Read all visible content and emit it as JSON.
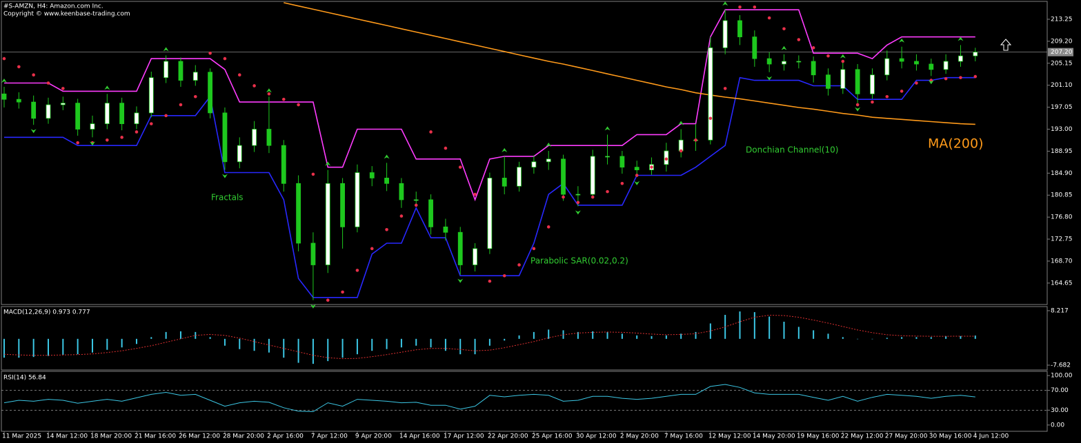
{
  "chart_data": [
    {
      "type": "candlestick",
      "title": "#S-AMZN, H4:  Amazon.com Inc.",
      "subtitle": "Copyright © www.keenbase-trading.com",
      "categories": [
        "11 Mar 2025",
        null,
        null,
        "14 Mar 12:00",
        null,
        null,
        "18 Mar 20:00",
        null,
        null,
        "21 Mar 16:00",
        null,
        null,
        "26 Mar 12:00",
        null,
        null,
        "28 Mar 20:00",
        null,
        null,
        "2 Apr 16:00",
        null,
        null,
        "7 Apr 12:00",
        null,
        null,
        "9 Apr 20:00",
        null,
        null,
        "14 Apr 16:00",
        null,
        null,
        "17 Apr 12:00",
        null,
        null,
        "22 Apr 20:00",
        null,
        null,
        "25 Apr 16:00",
        null,
        null,
        "30 Apr 12:00",
        null,
        null,
        "2 May 20:00",
        null,
        null,
        "7 May 16:00",
        null,
        null,
        "12 May 12:00",
        null,
        null,
        "14 May 20:00",
        null,
        null,
        "19 May 16:00",
        null,
        null,
        "22 May 12:00",
        null,
        null,
        "27 May 20:00",
        null,
        null,
        "30 May 16:00",
        null,
        null,
        "4 Jun 12:00"
      ],
      "open": [
        199.5,
        198.5,
        198,
        195,
        197.5,
        197.8,
        193,
        194,
        197.8,
        194,
        196,
        202.5,
        205.5,
        202,
        203.5,
        196,
        187,
        190,
        193,
        190,
        183,
        172,
        168,
        183,
        175,
        185,
        184,
        183,
        180,
        180,
        175,
        174,
        168,
        171,
        184,
        182.5,
        186,
        187,
        187.5,
        181,
        181,
        188,
        188,
        186,
        185.5,
        186.5,
        189,
        191,
        191,
        208,
        213,
        210,
        206,
        205,
        205.5,
        205.5,
        203,
        200.5,
        204,
        199.5,
        203,
        206,
        205.5,
        205,
        204,
        205.5,
        206.5
      ],
      "high": [
        200.8,
        199.8,
        199.2,
        198.8,
        199,
        198.6,
        195.5,
        199.5,
        198.8,
        197.2,
        203.6,
        206.6,
        206.2,
        204.8,
        204.2,
        197,
        191.5,
        194.5,
        199,
        191,
        184.5,
        174,
        185.5,
        184,
        186.5,
        186.2,
        186.8,
        184,
        181.5,
        181,
        176.5,
        175,
        172,
        185,
        188,
        187,
        188.2,
        189,
        188.3,
        182.5,
        189.2,
        192,
        189,
        187.2,
        187.8,
        190.5,
        193,
        194,
        210,
        215,
        214,
        211.2,
        207.2,
        206.8,
        206.6,
        206.4,
        204.2,
        205.3,
        205,
        204.2,
        207.5,
        208.2,
        206.8,
        206,
        206.8,
        208.5,
        208
      ],
      "low": [
        197,
        196.8,
        193.8,
        194,
        196.5,
        191.8,
        191.5,
        193,
        192.8,
        193,
        195.2,
        201.5,
        200.8,
        201,
        195,
        185.5,
        185.8,
        188.8,
        188.6,
        181.5,
        170.5,
        161.5,
        166.5,
        171,
        174,
        182.5,
        181.6,
        178.5,
        178.8,
        173.6,
        172.5,
        166.2,
        166.8,
        170,
        181,
        181.5,
        184.8,
        185.5,
        179.8,
        178.8,
        180.2,
        186.5,
        184.8,
        184.2,
        184.6,
        185.2,
        187.8,
        189,
        190.2,
        206.8,
        208.5,
        204.5,
        203.5,
        203.8,
        204.2,
        201.6,
        199.2,
        199.5,
        197.8,
        198.6,
        202,
        204.2,
        203.8,
        202.8,
        203.2,
        204.5,
        205.5
      ],
      "close": [
        198.5,
        198,
        195,
        197.5,
        197.8,
        193,
        194,
        197.8,
        194,
        196,
        202.5,
        205.5,
        202,
        203.5,
        196,
        187,
        190,
        193,
        190,
        183,
        172,
        168,
        183,
        175,
        185,
        184,
        183,
        180,
        180,
        175,
        174,
        168,
        171,
        184,
        182.5,
        186,
        187,
        187.5,
        181,
        181,
        188,
        188,
        186,
        185.5,
        186.5,
        189,
        191,
        191,
        208,
        213,
        210,
        206,
        205,
        205.5,
        205.5,
        203,
        200.5,
        204,
        199.5,
        203,
        206,
        205.5,
        205,
        204,
        205.5,
        206.5,
        207.2
      ],
      "up_color": "#ffffff",
      "down_color": "#1ec81e",
      "wick_color": "#1ec81e",
      "series": [
        {
          "style": "line",
          "color": "#ff3cff",
          "values": [
            201.5,
            201.5,
            201.5,
            201.5,
            200,
            200,
            200,
            200,
            200,
            200,
            206,
            206,
            206,
            206,
            206,
            204,
            198,
            198,
            198,
            198,
            198,
            198,
            186,
            186,
            193,
            193,
            193,
            193,
            187.5,
            187.5,
            187.5,
            187.5,
            180,
            187.5,
            188,
            188,
            188,
            190,
            190,
            190,
            190,
            190,
            190,
            192,
            192,
            192,
            194,
            194,
            210,
            215,
            215,
            215,
            215,
            215,
            215,
            207,
            207,
            207,
            207,
            206,
            208.5,
            210,
            210,
            210,
            210,
            210,
            210
          ]
        },
        {
          "style": "line",
          "color": "#2828ff",
          "values": [
            191.5,
            191.5,
            191.5,
            191.5,
            191.5,
            190,
            190,
            190,
            190,
            190,
            195.5,
            195.5,
            195.5,
            195.5,
            199,
            185,
            185,
            185,
            185,
            180,
            165.5,
            162,
            162,
            162,
            162,
            170,
            172,
            172,
            178.5,
            173,
            173,
            166,
            166,
            166,
            166,
            166,
            172,
            181,
            183,
            179,
            179,
            179,
            179,
            184.5,
            184.5,
            184.5,
            184.5,
            186,
            188,
            190,
            202.5,
            202,
            202,
            202,
            202,
            201,
            201,
            201,
            198.5,
            198.5,
            198.5,
            198.5,
            202,
            202,
            202.5,
            202.5,
            202.5
          ]
        },
        {
          "style": "dots",
          "color": "#e8304a",
          "values": [
            206,
            204.5,
            203,
            201.5,
            200.5,
            190.5,
            190.5,
            191,
            191.5,
            192.5,
            194,
            195.5,
            197.5,
            199,
            207,
            206,
            203,
            201,
            199.5,
            198.5,
            197.5,
            184.7,
            161.5,
            163,
            167,
            171,
            174.5,
            177,
            179,
            192.5,
            189.5,
            186,
            181,
            165,
            166,
            168,
            171,
            175,
            180.5,
            179.5,
            180.5,
            181.5,
            183,
            184.5,
            186,
            187.5,
            189,
            191,
            195,
            200.5,
            215.5,
            215.5,
            213.5,
            211.5,
            209.5,
            208,
            206.5,
            205.5,
            197.5,
            198,
            199,
            200,
            201.5,
            202,
            202.3,
            202.5,
            202.7
          ]
        },
        {
          "style": "line",
          "color": "#ff9a1a",
          "values": [
            null,
            null,
            null,
            null,
            null,
            null,
            null,
            null,
            null,
            null,
            null,
            null,
            null,
            null,
            null,
            null,
            null,
            null,
            null,
            216.3,
            215.7,
            215.1,
            214.5,
            213.9,
            213.3,
            212.7,
            212.1,
            211.5,
            210.9,
            210.3,
            209.7,
            209.1,
            208.5,
            207.9,
            207.3,
            206.7,
            206.1,
            205.5,
            205,
            204.4,
            203.8,
            203.2,
            202.6,
            202,
            201.4,
            200.8,
            200.3,
            199.7,
            199.3,
            198.9,
            198.6,
            198.2,
            197.8,
            197.4,
            197,
            196.7,
            196.3,
            195.9,
            195.6,
            195.2,
            195,
            194.8,
            194.6,
            194.4,
            194.2,
            194,
            193.9
          ]
        }
      ],
      "fractals": {
        "color": "#32cd32",
        "up": [
          0,
          7,
          11,
          18,
          22,
          26,
          34,
          37,
          41,
          46,
          49,
          53,
          57,
          61,
          65
        ],
        "down": [
          2,
          6,
          15,
          21,
          31,
          39,
          43,
          52,
          58,
          63
        ]
      },
      "current_price": {
        "value": 207.2,
        "label": "207.20"
      },
      "annotations": [
        "Fractals",
        "Parabolic SAR(0.02,0.2)",
        "Donchian Channel(10)",
        "MA(200)"
      ],
      "ylim": [
        160.7,
        216.8
      ],
      "yticks": [
        213.25,
        {
          "value": 209.2,
          "label": "209.20"
        },
        205.15,
        {
          "value": 201.1,
          "label": "201.10"
        },
        197.05,
        {
          "value": 193,
          "label": "193.00"
        },
        188.95,
        {
          "value": 184.9,
          "label": "184.90"
        },
        180.85,
        {
          "value": 176.8,
          "label": "176.80"
        },
        172.75,
        {
          "value": 168.7,
          "label": "168.70"
        },
        164.65
      ]
    },
    {
      "type": "macd",
      "title": "MACD(12,26,9) 0.973 0.777",
      "histogram": {
        "color": "#3cc8e6",
        "values": [
          -5.5,
          -5.5,
          -5.3,
          -5,
          -4.7,
          -4.5,
          -4,
          -3.2,
          -2.5,
          -1.5,
          0.5,
          2,
          2.2,
          2,
          0.5,
          -2,
          -3,
          -3.5,
          -4,
          -5.5,
          -7,
          -7.3,
          -6.5,
          -5.5,
          -4.5,
          -3.5,
          -3,
          -2.5,
          -2,
          -2.5,
          -3.5,
          -4.5,
          -4.5,
          -2,
          -0.5,
          1,
          2,
          2.7,
          2.5,
          2,
          2.2,
          2,
          1.5,
          1,
          0.8,
          1,
          1.5,
          2,
          4.5,
          7,
          8,
          7.8,
          6.5,
          5,
          3.5,
          2.5,
          1.5,
          0.5,
          0,
          0,
          0.3,
          0.5,
          0.5,
          0.5,
          0.8,
          0.8,
          0.973
        ]
      },
      "signal": {
        "color": "#e03030",
        "values": [
          -4.5,
          -4.7,
          -4.8,
          -4.8,
          -4.7,
          -4.6,
          -4.4,
          -4,
          -3.5,
          -2.8,
          -2,
          -1,
          0,
          1,
          1.3,
          1,
          0.2,
          -0.8,
          -1.8,
          -2.8,
          -3.8,
          -4.8,
          -5.5,
          -5.8,
          -5.7,
          -5.2,
          -4.6,
          -3.9,
          -3.2,
          -2.8,
          -2.8,
          -3.1,
          -3.5,
          -3.3,
          -2.6,
          -1.7,
          -0.8,
          0.3,
          1.2,
          1.7,
          1.9,
          2,
          1.9,
          1.7,
          1.4,
          1.2,
          1.3,
          1.5,
          2.3,
          3.5,
          5,
          6.3,
          6.9,
          6.8,
          6.3,
          5.5,
          4.6,
          3.6,
          2.6,
          1.8,
          1.2,
          0.9,
          0.8,
          0.75,
          0.75,
          0.76,
          0.777
        ]
      },
      "ylim": [
        -9.09,
        9.42
      ],
      "yticks": [
        8.217,
        -7.682
      ]
    },
    {
      "type": "line",
      "title": "RSI(14) 56.84",
      "color": "#3cc8e6",
      "values": [
        45,
        50,
        48,
        52,
        50,
        44,
        48,
        52,
        48,
        55,
        62,
        66,
        60,
        62,
        50,
        38,
        45,
        48,
        46,
        35,
        28,
        27,
        45,
        38,
        52,
        50,
        48,
        45,
        46,
        40,
        40,
        32,
        38,
        60,
        57,
        60,
        62,
        60,
        48,
        50,
        58,
        58,
        54,
        52,
        54,
        58,
        62,
        62,
        78,
        82,
        76,
        65,
        62,
        62,
        62,
        56,
        50,
        58,
        48,
        56,
        62,
        60,
        58,
        54,
        58,
        60,
        56.84
      ],
      "levels": [
        70,
        30
      ],
      "ylim": [
        -12.7,
        108.5
      ],
      "yticks": [
        {
          "value": 100,
          "label": "100.00"
        },
        {
          "value": 70,
          "label": "70.00"
        },
        {
          "value": 30,
          "label": "30.00"
        },
        {
          "value": 0,
          "label": "0.00"
        }
      ]
    }
  ]
}
